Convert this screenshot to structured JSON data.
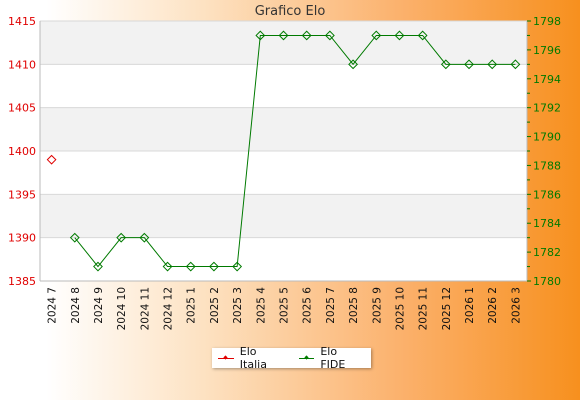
{
  "chart_data": {
    "type": "line",
    "title": "Grafico Elo",
    "categories": [
      "2024 7",
      "2024 8",
      "2024 9",
      "2024 10",
      "2024 11",
      "2024 12",
      "2025 1",
      "2025 2",
      "2025 3",
      "2025 4",
      "2025 5",
      "2025 6",
      "2025 7",
      "2025 8",
      "2025 9",
      "2025 10",
      "2025 11",
      "2025 12",
      "2026 1",
      "2026 2",
      "2026 3"
    ],
    "left_axis": {
      "ylim": [
        1385,
        1415
      ],
      "ticks": [
        1385,
        1390,
        1395,
        1400,
        1405,
        1410,
        1415
      ],
      "color": "#e00000"
    },
    "right_axis": {
      "ylim": [
        1780,
        1798
      ],
      "ticks": [
        1780,
        1782,
        1784,
        1786,
        1788,
        1790,
        1792,
        1794,
        1796,
        1798
      ],
      "color": "#007a00"
    },
    "series": [
      {
        "name": "Elo Italia",
        "axis": "left",
        "color": "#e00000",
        "values": [
          1399,
          null,
          null,
          null,
          null,
          null,
          null,
          null,
          null,
          null,
          null,
          null,
          null,
          null,
          null,
          null,
          null,
          null,
          null,
          null,
          null
        ]
      },
      {
        "name": "Elo FIDE",
        "axis": "right",
        "color": "#007a00",
        "values": [
          null,
          1783,
          1781,
          1783,
          1783,
          1781,
          1781,
          1781,
          1781,
          1797,
          1797,
          1797,
          1797,
          1795,
          1797,
          1797,
          1797,
          1795,
          1795,
          1795,
          1795
        ]
      }
    ],
    "grid": true,
    "legend_position": "bottom"
  }
}
